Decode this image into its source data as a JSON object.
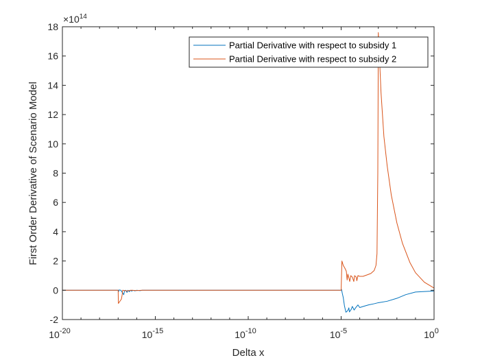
{
  "chart_data": {
    "type": "line",
    "xlabel": "Delta x",
    "ylabel": "First Order Derivative of Scenario Model",
    "x_scale": "log",
    "xlim": [
      1e-20,
      1
    ],
    "ylim": [
      -200000000000000.0,
      1800000000000000.0
    ],
    "y_multiplier": "×10",
    "y_multiplier_exp": "14",
    "x_ticks": [
      {
        "value": 1e-20,
        "base": "10",
        "exp": "-20"
      },
      {
        "value": 1e-15,
        "base": "10",
        "exp": "-15"
      },
      {
        "value": 1e-10,
        "base": "10",
        "exp": "-10"
      },
      {
        "value": 1e-05,
        "base": "10",
        "exp": "-5"
      },
      {
        "value": 1,
        "base": "10",
        "exp": "0"
      }
    ],
    "y_ticks": [
      -2,
      0,
      2,
      4,
      6,
      8,
      10,
      12,
      14,
      16,
      18
    ],
    "legend_position": "top-right",
    "series": [
      {
        "name": "Partial Derivative with respect to subsidy 1",
        "color": "#0072BD",
        "points": [
          [
            1e-20,
            0
          ],
          [
            1e-17,
            0
          ],
          [
            1.05e-17,
            -10000000000000.0
          ],
          [
            1.1e-17,
            2000000000000.0
          ],
          [
            1.4e-17,
            0
          ],
          [
            2e-17,
            -30000000000000.0
          ],
          [
            2.2e-17,
            -5000000000000.0
          ],
          [
            2.6e-17,
            0
          ],
          [
            3e-17,
            -15000000000000.0
          ],
          [
            3.3e-17,
            0
          ],
          [
            4e-17,
            -10000000000000.0
          ],
          [
            4.5e-17,
            0
          ],
          [
            5.5e-17,
            -6000000000000.0
          ],
          [
            6e-17,
            0
          ],
          [
            8e-17,
            -4000000000000.0
          ],
          [
            1e-16,
            0
          ],
          [
            1.5e-16,
            -3000000000000.0
          ],
          [
            2e-16,
            0
          ],
          [
            1e-05,
            0
          ],
          [
            1.05e-05,
            5000000000000.0
          ],
          [
            1.15e-05,
            -20000000000000.0
          ],
          [
            1.3e-05,
            -50000000000000.0
          ],
          [
            1.5e-05,
            -105000000000000.0
          ],
          [
            1.8e-05,
            -150000000000000.0
          ],
          [
            2.3e-05,
            -138000000000000.0
          ],
          [
            2.6e-05,
            -120000000000000.0
          ],
          [
            2.8e-05,
            -148000000000000.0
          ],
          [
            3.5e-05,
            -130000000000000.0
          ],
          [
            4e-05,
            -110000000000000.0
          ],
          [
            5e-05,
            -135000000000000.0
          ],
          [
            6e-05,
            -120000000000000.0
          ],
          [
            8e-05,
            -100000000000000.0
          ],
          [
            0.0001,
            -118000000000000.0
          ],
          [
            0.00016,
            -110000000000000.0
          ],
          [
            0.0003,
            -100000000000000.0
          ],
          [
            0.0006,
            -92000000000000.0
          ],
          [
            0.001,
            -85000000000000.0
          ],
          [
            0.003,
            -75000000000000.0
          ],
          [
            0.01,
            -55000000000000.0
          ],
          [
            0.03,
            -30000000000000.0
          ],
          [
            0.1,
            -12000000000000.0
          ],
          [
            1,
            -5000000000000.0
          ]
        ]
      },
      {
        "name": "Partial Derivative with respect to subsidy 2",
        "color": "#D95319",
        "points": [
          [
            1e-20,
            0
          ],
          [
            1e-17,
            0
          ],
          [
            1.03e-17,
            -90000000000000.0
          ],
          [
            1.5e-17,
            -60000000000000.0
          ],
          [
            1.65e-17,
            -30000000000000.0
          ],
          [
            1.75e-17,
            0
          ],
          [
            3e-17,
            -5000000000000.0
          ],
          [
            5e-17,
            0
          ],
          [
            1e-16,
            -2000000000000.0
          ],
          [
            2e-16,
            0
          ],
          [
            1e-05,
            0
          ],
          [
            1.05e-05,
            100000000000000.0
          ],
          [
            1.1e-05,
            200000000000000.0
          ],
          [
            1.3e-05,
            170000000000000.0
          ],
          [
            1.6e-05,
            150000000000000.0
          ],
          [
            1.9e-05,
            130000000000000.0
          ],
          [
            2.1e-05,
            70000000000000.0
          ],
          [
            2.3e-05,
            110000000000000.0
          ],
          [
            2.6e-05,
            85000000000000.0
          ],
          [
            2.9e-05,
            60000000000000.0
          ],
          [
            3.3e-05,
            100000000000000.0
          ],
          [
            4e-05,
            90000000000000.0
          ],
          [
            4.8e-05,
            60000000000000.0
          ],
          [
            5.3e-05,
            100000000000000.0
          ],
          [
            6.5e-05,
            90000000000000.0
          ],
          [
            7e-05,
            65000000000000.0
          ],
          [
            8e-05,
            100000000000000.0
          ],
          [
            0.0001,
            95000000000000.0
          ],
          [
            0.00015,
            95000000000000.0
          ],
          [
            0.00025,
            105000000000000.0
          ],
          [
            0.0004,
            115000000000000.0
          ],
          [
            0.0006,
            135000000000000.0
          ],
          [
            0.00075,
            170000000000000.0
          ],
          [
            0.00085,
            250000000000000.0
          ],
          [
            0.00094,
            800000000000000.0
          ],
          [
            0.00098,
            1400000000000000.0
          ],
          [
            0.001,
            1760000000000000.0
          ],
          [
            0.0011,
            1650000000000000.0
          ],
          [
            0.0014,
            1350000000000000.0
          ],
          [
            0.002,
            1050000000000000.0
          ],
          [
            0.003,
            850000000000000.0
          ],
          [
            0.005,
            650000000000000.0
          ],
          [
            0.01,
            460000000000000.0
          ],
          [
            0.02,
            320000000000000.0
          ],
          [
            0.05,
            190000000000000.0
          ],
          [
            0.1,
            120000000000000.0
          ],
          [
            0.3,
            55000000000000.0
          ],
          [
            1,
            15000000000000.0
          ]
        ]
      }
    ]
  }
}
